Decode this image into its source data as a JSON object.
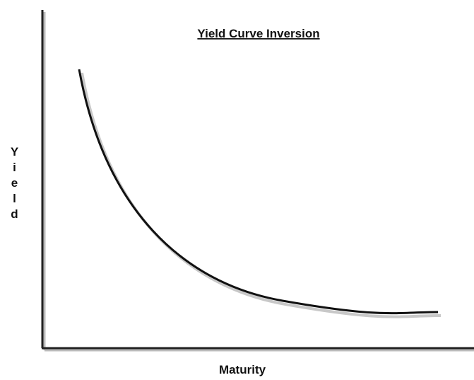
{
  "chart_data": {
    "type": "line",
    "title": "Yield Curve Inversion",
    "x_label": "Maturity",
    "y_label": "Yield"
  }
}
